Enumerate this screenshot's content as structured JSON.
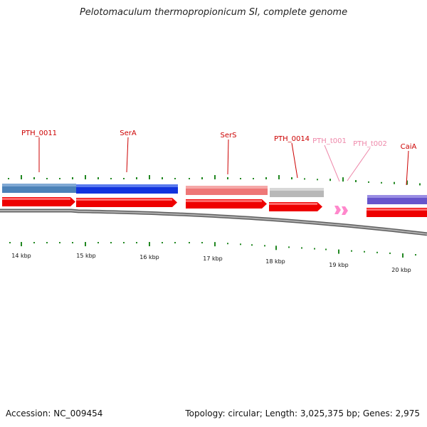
{
  "title": "Pelotomaculum thermopropionicum SI, complete genome",
  "footer": {
    "accession": "Accession: NC_009454",
    "topology": "Topology: circular; Length: 3,025,375 bp; Genes: 2,975"
  },
  "colors": {
    "red_label": "#cc0000",
    "pink_label": "#ee88aa",
    "tick_green": "#228822",
    "cds_red": "#ee0000",
    "backbone": "#808080"
  },
  "kbp_labels": [
    {
      "kbp": 14,
      "text": "14 kbp"
    },
    {
      "kbp": 15,
      "text": "15 kbp"
    },
    {
      "kbp": 16,
      "text": "16 kbp"
    },
    {
      "kbp": 17,
      "text": "17 kbp"
    },
    {
      "kbp": 18,
      "text": "18 kbp"
    },
    {
      "kbp": 19,
      "text": "19 kbp"
    },
    {
      "kbp": 20,
      "text": "20 kbp"
    }
  ],
  "genes": [
    {
      "name": "PTH_0011",
      "color": "#cc0000"
    },
    {
      "name": "SerA",
      "color": "#cc0000"
    },
    {
      "name": "SerS",
      "color": "#cc0000"
    },
    {
      "name": "PTH_0014",
      "color": "#cc0000"
    },
    {
      "name": "PTH_t001",
      "color": "#ee88aa"
    },
    {
      "name": "PTH_t002",
      "color": "#ee88aa"
    },
    {
      "name": "CaiA",
      "color": "#cc0000"
    }
  ]
}
